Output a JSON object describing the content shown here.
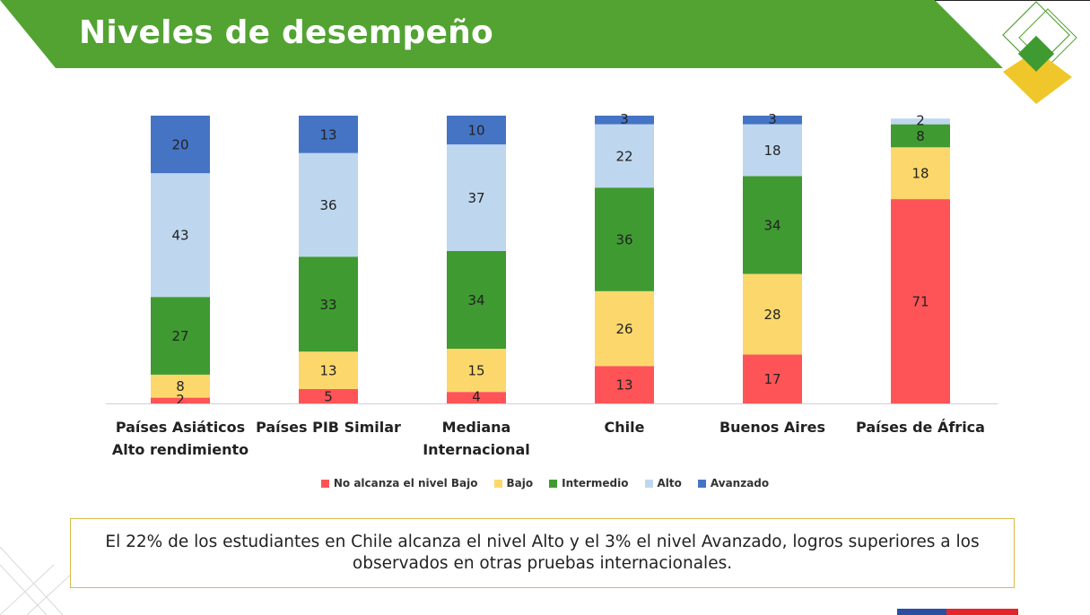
{
  "page": {
    "title": "Niveles de desempeño"
  },
  "colors": {
    "header_green": "#52a332",
    "no_alcanza": "#ff5457",
    "bajo": "#fcd86c",
    "intermedio": "#3f9a31",
    "alto": "#bed7ee",
    "avanzado": "#4574c5",
    "logo_yellow": "#f0c72a",
    "flag_blue": "#2b4fa0",
    "flag_red": "#e3262b"
  },
  "chart_data": {
    "type": "bar",
    "stacked": true,
    "categories": [
      "Países Asiáticos Alto rendimiento",
      "Países PIB Similar",
      "Mediana Internacional",
      "Chile",
      "Buenos Aires",
      "Países de África"
    ],
    "category_lines": [
      [
        "Países Asiáticos",
        "Alto rendimiento"
      ],
      [
        "Países PIB Similar"
      ],
      [
        "Mediana",
        "Internacional"
      ],
      [
        "Chile"
      ],
      [
        "Buenos Aires"
      ],
      [
        "Países de África"
      ]
    ],
    "series": [
      {
        "name": "No alcanza el nivel Bajo",
        "values": [
          2,
          5,
          4,
          13,
          17,
          71
        ]
      },
      {
        "name": "Bajo",
        "values": [
          8,
          13,
          15,
          26,
          28,
          18
        ]
      },
      {
        "name": "Intermedio",
        "values": [
          27,
          33,
          34,
          36,
          34,
          8
        ]
      },
      {
        "name": "Alto",
        "values": [
          43,
          36,
          37,
          22,
          18,
          2
        ]
      },
      {
        "name": "Avanzado",
        "values": [
          20,
          13,
          10,
          3,
          3,
          0
        ]
      }
    ],
    "data_labels": [
      [
        "2",
        "5",
        "4",
        "13",
        "17",
        "71"
      ],
      [
        "8",
        "13",
        "15",
        "26",
        "28",
        "18"
      ],
      [
        "27",
        "33",
        "34",
        "36",
        "34",
        "8"
      ],
      [
        "43",
        "36",
        "37",
        "22",
        "18",
        "2"
      ],
      [
        "20",
        "13",
        "10",
        "3",
        "3",
        ""
      ]
    ],
    "ylim": [
      0,
      100
    ],
    "grid": false,
    "legend_position": "bottom"
  },
  "callout": {
    "text": "El 22% de los estudiantes en Chile alcanza el nivel Alto y el 3% el nivel Avanzado, logros superiores a los observados en otras pruebas internacionales."
  }
}
